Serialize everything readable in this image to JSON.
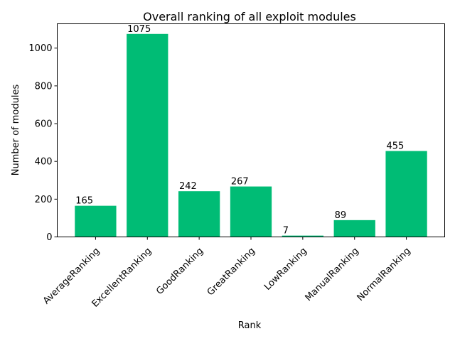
{
  "chart_data": {
    "type": "bar",
    "title": "Overall ranking of all exploit modules",
    "xlabel": "Rank",
    "ylabel": "Number of modules",
    "categories": [
      "AverageRanking",
      "ExcellentRanking",
      "GoodRanking",
      "GreatRanking",
      "LowRanking",
      "ManualRanking",
      "NormalRanking"
    ],
    "values": [
      165,
      1075,
      242,
      267,
      7,
      89,
      455
    ],
    "yticks": [
      0,
      200,
      400,
      600,
      800,
      1000
    ],
    "ylim": [
      0,
      1128.75
    ],
    "bar_color": "#00bc75",
    "grid": false,
    "legend": "none"
  }
}
